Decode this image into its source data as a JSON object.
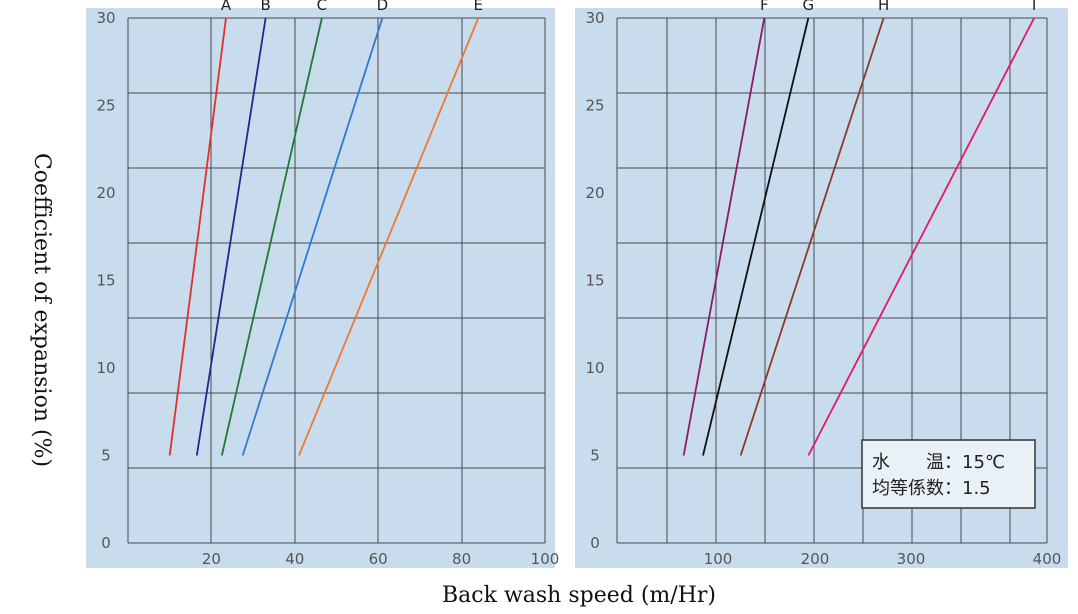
{
  "chart_data": [
    {
      "type": "line",
      "panel": "left",
      "xlim": [
        0,
        100
      ],
      "ylim": [
        0,
        30
      ],
      "xticks": [
        "20",
        "40",
        "60",
        "80",
        "100"
      ],
      "yticks": [
        "0",
        "5",
        "10",
        "15",
        "20",
        "25",
        "30"
      ],
      "grid": true,
      "series": [
        {
          "name": "A",
          "color": "#e0302a",
          "points": [
            [
              10,
              5
            ],
            [
              23.5,
              30
            ]
          ]
        },
        {
          "name": "B",
          "color": "#1d2a8c",
          "points": [
            [
              16.5,
              5
            ],
            [
              33,
              30
            ]
          ]
        },
        {
          "name": "C",
          "color": "#1f7a34",
          "points": [
            [
              22.5,
              5
            ],
            [
              46.5,
              30
            ]
          ]
        },
        {
          "name": "D",
          "color": "#2f7ad0",
          "points": [
            [
              27.5,
              5
            ],
            [
              61,
              30
            ]
          ]
        },
        {
          "name": "E",
          "color": "#f07830",
          "points": [
            [
              41,
              5
            ],
            [
              84,
              30
            ]
          ]
        }
      ]
    },
    {
      "type": "line",
      "panel": "right",
      "xlim": [
        0,
        400
      ],
      "ylim": [
        0,
        30
      ],
      "xticks": [
        "100",
        "200",
        "300",
        "400"
      ],
      "yticks": [
        "0",
        "5",
        "10",
        "15",
        "20",
        "25",
        "30"
      ],
      "grid": true,
      "series": [
        {
          "name": "F",
          "color": "#8a1a6a",
          "points": [
            [
              62,
              5
            ],
            [
              137,
              30
            ]
          ]
        },
        {
          "name": "G",
          "color": "#111111",
          "points": [
            [
              80,
              5
            ],
            [
              178,
              30
            ]
          ]
        },
        {
          "name": "H",
          "color": "#8a3a2a",
          "points": [
            [
              115,
              5
            ],
            [
              248,
              30
            ]
          ]
        },
        {
          "name": "I",
          "color": "#e01a6a",
          "points": [
            [
              178,
              5
            ],
            [
              388,
              30
            ]
          ]
        }
      ],
      "legend": {
        "position": "bottom-right",
        "lines": [
          "水　　温：15℃",
          "均等係数：1.5"
        ]
      }
    }
  ],
  "xlabel": "Back wash speed (m/Hr)",
  "ylabel": "Coefficient of expansion (%)"
}
